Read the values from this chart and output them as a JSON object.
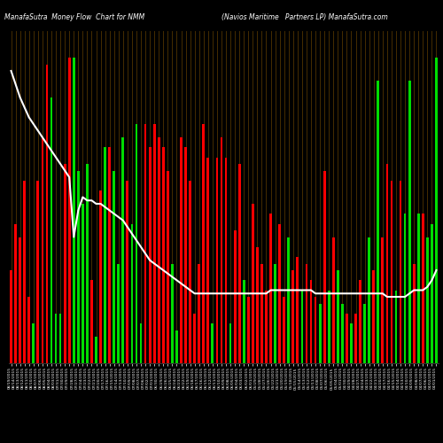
{
  "title_left": "ManafaSutra  Money Flow  Chart for NMM",
  "title_right": "(Navios Maritime   Partners LP) ManafaSutra.com",
  "background_color": "#000000",
  "bar_color_red": "#ff0000",
  "bar_color_green": "#00dd00",
  "grid_color": "#5a3a00",
  "line_color": "#ffffff",
  "bar_heights": [
    0.28,
    0.42,
    0.38,
    0.55,
    0.2,
    0.12,
    0.55,
    0.68,
    0.9,
    0.8,
    0.15,
    0.15,
    0.6,
    0.92,
    0.92,
    0.58,
    0.48,
    0.6,
    0.25,
    0.08,
    0.52,
    0.65,
    0.65,
    0.58,
    0.3,
    0.68,
    0.55,
    0.42,
    0.72,
    0.12,
    0.72,
    0.65,
    0.72,
    0.68,
    0.65,
    0.58,
    0.3,
    0.1,
    0.68,
    0.65,
    0.55,
    0.15,
    0.3,
    0.72,
    0.62,
    0.12,
    0.62,
    0.68,
    0.62,
    0.12,
    0.4,
    0.6,
    0.25,
    0.2,
    0.48,
    0.35,
    0.3,
    0.22,
    0.45,
    0.3,
    0.42,
    0.2,
    0.38,
    0.28,
    0.32,
    0.22,
    0.3,
    0.25,
    0.2,
    0.18,
    0.58,
    0.22,
    0.38,
    0.28,
    0.18,
    0.15,
    0.12,
    0.15,
    0.25,
    0.18,
    0.38,
    0.28,
    0.85,
    0.38,
    0.6,
    0.55,
    0.22,
    0.55,
    0.45,
    0.85,
    0.3,
    0.45,
    0.45,
    0.38,
    0.42,
    0.92
  ],
  "bar_colors": [
    "r",
    "r",
    "r",
    "r",
    "r",
    "g",
    "r",
    "r",
    "r",
    "g",
    "g",
    "g",
    "r",
    "r",
    "g",
    "g",
    "g",
    "g",
    "r",
    "g",
    "r",
    "g",
    "r",
    "g",
    "g",
    "g",
    "r",
    "g",
    "g",
    "g",
    "r",
    "r",
    "r",
    "r",
    "r",
    "r",
    "g",
    "g",
    "r",
    "r",
    "r",
    "r",
    "r",
    "r",
    "r",
    "g",
    "r",
    "r",
    "r",
    "g",
    "r",
    "r",
    "g",
    "r",
    "r",
    "r",
    "r",
    "r",
    "r",
    "g",
    "r",
    "r",
    "g",
    "r",
    "r",
    "g",
    "r",
    "r",
    "r",
    "g",
    "r",
    "g",
    "r",
    "g",
    "g",
    "r",
    "g",
    "r",
    "r",
    "g",
    "g",
    "r",
    "g",
    "r",
    "r",
    "r",
    "g",
    "r",
    "g",
    "g",
    "r",
    "g",
    "r",
    "g",
    "g",
    "g"
  ],
  "line_values": [
    0.88,
    0.82,
    0.78,
    0.75,
    0.72,
    0.7,
    0.68,
    0.66,
    0.64,
    0.62,
    0.6,
    0.58,
    0.57,
    0.56,
    0.38,
    0.48,
    0.52,
    0.5,
    0.5,
    0.49,
    0.48,
    0.46,
    0.44,
    0.42,
    0.4,
    0.38,
    0.36,
    0.34,
    0.32,
    0.3,
    0.28,
    0.26,
    0.24,
    0.22,
    0.2,
    0.2,
    0.2,
    0.2,
    0.2,
    0.2,
    0.2,
    0.2,
    0.2,
    0.2,
    0.2,
    0.2,
    0.2,
    0.2,
    0.2,
    0.2,
    0.2,
    0.2,
    0.2,
    0.2,
    0.2,
    0.2,
    0.2,
    0.2,
    0.2,
    0.2,
    0.2,
    0.2,
    0.2,
    0.2,
    0.2,
    0.2,
    0.2,
    0.2,
    0.2,
    0.2,
    0.2,
    0.2,
    0.2,
    0.2,
    0.2,
    0.2,
    0.2,
    0.2,
    0.2,
    0.2,
    0.2,
    0.2,
    0.2,
    0.2,
    0.2,
    0.2,
    0.2,
    0.2,
    0.2,
    0.2,
    0.2,
    0.2,
    0.2,
    0.2,
    0.2,
    0.2
  ],
  "x_labels": [
    "08/19/2015",
    "08/14/2015",
    "08/13/2015",
    "08/12/2015",
    "08/11/2015",
    "08/10/2015",
    "08/07/2015",
    "08/06/2015",
    "08/05/2015",
    "08/04/2015",
    "08/03/2015",
    "07/31/2015",
    "07/30/2015",
    "07/29/2015",
    "07/28/2015",
    "07/27/2015",
    "07/24/2015",
    "07/23/2015",
    "07/22/2015",
    "07/21/2015",
    "07/20/2015",
    "07/17/2015",
    "07/16/2015",
    "07/15/2015",
    "07/14/2015",
    "07/13/2015",
    "07/10/2015",
    "07/09/2015",
    "07/08/2015",
    "07/07/2015",
    "07/06/2015",
    "07/02/2015",
    "07/01/2015",
    "06/30/2015",
    "06/29/2015",
    "06/26/2015",
    "06/25/2015",
    "06/24/2015",
    "06/23/2015",
    "06/22/2015",
    "06/19/2015",
    "06/18/2015",
    "06/17/2015",
    "06/16/2015",
    "06/15/2015",
    "06/12/2015",
    "06/11/2015",
    "06/10/2015",
    "06/09/2015",
    "06/08/2015",
    "06/05/2015",
    "06/04/2015",
    "06/03/2015",
    "06/02/2015",
    "06/01/2015",
    "05/29/2015",
    "05/28/2015",
    "05/27/2015",
    "05/26/2015",
    "05/22/2015",
    "05/21/2015",
    "05/20/2015",
    "05/19/2015",
    "05/18/2015",
    "05/15/2015",
    "05/14/2015",
    "05/13/2015",
    "05/12/2015",
    "05/11/2015",
    "05/08/2015",
    "05/07/2015",
    "05/06/2015",
    "05/05/2015",
    "05/04/2015",
    "05/01/2015",
    "04/30/2015",
    "04/29/2015",
    "04/28/2015",
    "04/27/2015",
    "04/24/2015",
    "04/23/2015",
    "04/22/2015",
    "04/21/2015",
    "04/20/2015",
    "04/17/2015",
    "04/16/2015",
    "04/15/2015",
    "04/14/2015",
    "04/13/2015",
    "04/10/2015",
    "04/09/2015",
    "04/08/2015",
    "04/07/2015",
    "04/06/2015",
    "04/02/2015",
    "04/01/2015"
  ],
  "ylim": [
    0.0,
    1.0
  ],
  "figsize": [
    5.0,
    5.0
  ],
  "dpi": 100
}
